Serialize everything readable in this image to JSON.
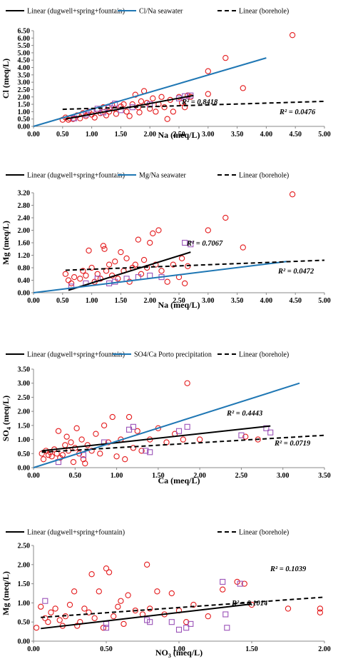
{
  "colors": {
    "points_main": "#e41a1c",
    "points_borehole": "#9a52b8",
    "seawater_line": "#1f77b4",
    "trend_line": "#000000"
  },
  "chart_data": [
    {
      "type": "scatter",
      "xlabel": "Na (meq/L)",
      "ylabel": "Cl (meq/L)",
      "xlim": [
        0,
        5
      ],
      "ylim": [
        0,
        6.5
      ],
      "xticks": [
        "0.00",
        "0.50",
        "1.00",
        "1.50",
        "2.00",
        "2.50",
        "3.00",
        "3.50",
        "4.00",
        "4.50",
        "5.00"
      ],
      "yticks": [
        "0.00",
        "0.50",
        "1.00",
        "1.50",
        "2.00",
        "2.50",
        "3.00",
        "3.50",
        "4.00",
        "4.50",
        "5.00",
        "5.50",
        "6.00",
        "6.50"
      ],
      "legend": [
        "Linear (dugwell+spring+fountain)",
        "Cl/Na seawater",
        "Linear (borehole)"
      ],
      "annotations": [
        "R² = 0.8418",
        "R² = 0.0476"
      ],
      "lines": [
        {
          "style": "solid-black",
          "x": [
            0.55,
            2.75
          ],
          "y": [
            0.5,
            2.1
          ]
        },
        {
          "style": "solid-blue",
          "x": [
            0,
            4.0
          ],
          "y": [
            0,
            4.65
          ]
        },
        {
          "style": "dashed-black",
          "x": [
            0.5,
            5.0
          ],
          "y": [
            1.16,
            1.7
          ]
        }
      ],
      "series_main": [
        [
          0.5,
          0.45
        ],
        [
          0.55,
          0.6
        ],
        [
          0.6,
          0.45
        ],
        [
          0.62,
          0.55
        ],
        [
          0.68,
          0.5
        ],
        [
          0.75,
          0.75
        ],
        [
          0.8,
          0.55
        ],
        [
          0.85,
          0.9
        ],
        [
          0.9,
          0.7
        ],
        [
          0.95,
          1.0
        ],
        [
          1.0,
          0.8
        ],
        [
          1.05,
          0.6
        ],
        [
          1.1,
          1.1
        ],
        [
          1.15,
          0.9
        ],
        [
          1.2,
          1.3
        ],
        [
          1.25,
          0.75
        ],
        [
          1.3,
          1.0
        ],
        [
          1.35,
          1.45
        ],
        [
          1.4,
          1.2
        ],
        [
          1.42,
          0.85
        ],
        [
          1.5,
          1.35
        ],
        [
          1.55,
          1.5
        ],
        [
          1.6,
          1.0
        ],
        [
          1.65,
          0.7
        ],
        [
          1.7,
          1.5
        ],
        [
          1.75,
          2.15
        ],
        [
          1.8,
          1.3
        ],
        [
          1.82,
          0.95
        ],
        [
          1.85,
          1.7
        ],
        [
          1.9,
          2.4
        ],
        [
          1.95,
          1.6
        ],
        [
          2.0,
          1.2
        ],
        [
          2.05,
          1.9
        ],
        [
          2.1,
          1.0
        ],
        [
          2.15,
          1.5
        ],
        [
          2.2,
          2.0
        ],
        [
          2.25,
          1.3
        ],
        [
          2.3,
          0.5
        ],
        [
          2.35,
          1.8
        ],
        [
          2.4,
          1.0
        ],
        [
          2.5,
          2.0
        ],
        [
          2.55,
          1.6
        ],
        [
          2.6,
          1.3
        ],
        [
          2.65,
          2.1
        ],
        [
          2.7,
          2.0
        ],
        [
          3.0,
          3.75
        ],
        [
          3.0,
          2.2
        ],
        [
          3.3,
          4.65
        ],
        [
          3.6,
          2.6
        ],
        [
          4.45,
          6.2
        ]
      ],
      "series_borehole": [
        [
          0.7,
          0.55
        ],
        [
          0.9,
          0.8
        ],
        [
          1.0,
          1.0
        ],
        [
          1.1,
          1.2
        ],
        [
          1.2,
          0.95
        ],
        [
          1.3,
          1.25
        ],
        [
          1.4,
          1.55
        ],
        [
          1.5,
          1.1
        ],
        [
          1.7,
          1.3
        ],
        [
          2.0,
          1.5
        ],
        [
          2.5,
          1.9
        ],
        [
          2.6,
          2.05
        ],
        [
          2.7,
          2.1
        ]
      ]
    },
    {
      "type": "scatter",
      "xlabel": "Na (meq/L)",
      "ylabel": "Mg (meq/L)",
      "xlim": [
        0,
        5
      ],
      "ylim": [
        0,
        3.2
      ],
      "xticks": [
        "0.00",
        "0.50",
        "1.00",
        "1.50",
        "2.00",
        "2.50",
        "3.00",
        "3.50",
        "4.00",
        "4.50",
        "5.00"
      ],
      "yticks": [
        "0.00",
        "0.40",
        "0.80",
        "1.20",
        "1.60",
        "2.00",
        "2.40",
        "2.80",
        "3.20"
      ],
      "legend": [
        "Linear (dugwell+spring+fountain)",
        "Mg/Na seawater",
        "Linear (borehole)"
      ],
      "annotations": [
        "R² = 0.7067",
        "R² = 0.0472"
      ],
      "lines": [
        {
          "style": "solid-black",
          "x": [
            0.6,
            2.7
          ],
          "y": [
            0.08,
            1.3
          ]
        },
        {
          "style": "solid-blue",
          "x": [
            0,
            4.35
          ],
          "y": [
            0,
            1.0
          ]
        },
        {
          "style": "dashed-black",
          "x": [
            0.55,
            5.0
          ],
          "y": [
            0.72,
            1.04
          ]
        }
      ],
      "series_main": [
        [
          0.55,
          0.6
        ],
        [
          0.6,
          0.4
        ],
        [
          0.65,
          0.3
        ],
        [
          0.7,
          0.5
        ],
        [
          0.8,
          0.45
        ],
        [
          0.85,
          0.7
        ],
        [
          0.9,
          0.55
        ],
        [
          0.95,
          1.35
        ],
        [
          1.0,
          0.8
        ],
        [
          1.05,
          0.35
        ],
        [
          1.1,
          0.6
        ],
        [
          1.15,
          0.45
        ],
        [
          1.2,
          1.5
        ],
        [
          1.22,
          1.4
        ],
        [
          1.25,
          0.7
        ],
        [
          1.3,
          0.9
        ],
        [
          1.35,
          0.55
        ],
        [
          1.4,
          1.0
        ],
        [
          1.45,
          0.45
        ],
        [
          1.5,
          1.3
        ],
        [
          1.55,
          0.7
        ],
        [
          1.6,
          1.1
        ],
        [
          1.65,
          0.35
        ],
        [
          1.7,
          0.8
        ],
        [
          1.75,
          0.9
        ],
        [
          1.8,
          1.7
        ],
        [
          1.85,
          0.6
        ],
        [
          1.9,
          1.05
        ],
        [
          1.95,
          0.8
        ],
        [
          2.0,
          1.6
        ],
        [
          2.05,
          1.9
        ],
        [
          2.1,
          0.9
        ],
        [
          2.15,
          2.0
        ],
        [
          2.2,
          0.7
        ],
        [
          2.3,
          0.35
        ],
        [
          2.4,
          0.9
        ],
        [
          2.5,
          0.5
        ],
        [
          2.55,
          1.1
        ],
        [
          2.6,
          0.3
        ],
        [
          2.65,
          0.85
        ],
        [
          3.0,
          2.0
        ],
        [
          3.3,
          2.4
        ],
        [
          3.6,
          1.45
        ],
        [
          4.45,
          3.15
        ]
      ],
      "series_borehole": [
        [
          0.65,
          0.2
        ],
        [
          0.9,
          0.3
        ],
        [
          1.1,
          0.45
        ],
        [
          1.3,
          0.3
        ],
        [
          1.4,
          0.35
        ],
        [
          1.6,
          0.45
        ],
        [
          1.8,
          0.5
        ],
        [
          2.0,
          0.55
        ],
        [
          2.2,
          0.5
        ],
        [
          2.6,
          1.6
        ],
        [
          2.7,
          1.55
        ]
      ]
    },
    {
      "type": "scatter",
      "xlabel": "Ca (meq/L)",
      "ylabel": "SO4 (meq/L)",
      "xlim": [
        0,
        3.5
      ],
      "ylim": [
        0,
        3.5
      ],
      "xticks": [
        "0.00",
        "0.50",
        "1.00",
        "1.50",
        "2.00",
        "2.50",
        "3.00",
        "3.50"
      ],
      "yticks": [
        "0.00",
        "0.50",
        "1.00",
        "1.50",
        "2.00",
        "2.50",
        "3.00",
        "3.50"
      ],
      "legend": [
        "Linear (dugwell+spring+fountain)",
        "SO4/Ca Porto precipitation",
        "Linear (borehole)"
      ],
      "annotations": [
        "R² = 0.4443",
        "R² = 0.0719"
      ],
      "lines": [
        {
          "style": "solid-black",
          "x": [
            0.1,
            2.85
          ],
          "y": [
            0.6,
            1.48
          ]
        },
        {
          "style": "solid-blue",
          "x": [
            0,
            3.2
          ],
          "y": [
            0,
            3.0
          ]
        },
        {
          "style": "dashed-black",
          "x": [
            0.1,
            3.5
          ],
          "y": [
            0.55,
            1.15
          ]
        }
      ],
      "series_main": [
        [
          0.1,
          0.5
        ],
        [
          0.12,
          0.3
        ],
        [
          0.15,
          0.6
        ],
        [
          0.18,
          0.45
        ],
        [
          0.2,
          0.55
        ],
        [
          0.22,
          0.4
        ],
        [
          0.25,
          0.65
        ],
        [
          0.28,
          0.5
        ],
        [
          0.3,
          1.3
        ],
        [
          0.32,
          0.35
        ],
        [
          0.35,
          0.45
        ],
        [
          0.38,
          0.8
        ],
        [
          0.4,
          1.1
        ],
        [
          0.42,
          0.6
        ],
        [
          0.45,
          0.9
        ],
        [
          0.48,
          0.2
        ],
        [
          0.5,
          0.7
        ],
        [
          0.52,
          1.4
        ],
        [
          0.55,
          0.5
        ],
        [
          0.58,
          1.0
        ],
        [
          0.6,
          0.3
        ],
        [
          0.62,
          0.15
        ],
        [
          0.65,
          0.8
        ],
        [
          0.7,
          0.6
        ],
        [
          0.75,
          1.2
        ],
        [
          0.8,
          0.5
        ],
        [
          0.85,
          1.5
        ],
        [
          0.9,
          0.9
        ],
        [
          0.95,
          1.8
        ],
        [
          1.0,
          0.4
        ],
        [
          1.05,
          1.0
        ],
        [
          1.1,
          0.3
        ],
        [
          1.15,
          1.8
        ],
        [
          1.2,
          0.7
        ],
        [
          1.25,
          1.3
        ],
        [
          1.3,
          0.6
        ],
        [
          1.4,
          1.0
        ],
        [
          1.5,
          1.4
        ],
        [
          1.6,
          0.9
        ],
        [
          1.7,
          1.2
        ],
        [
          1.8,
          1.0
        ],
        [
          1.85,
          3.0
        ],
        [
          2.0,
          1.0
        ],
        [
          2.55,
          1.1
        ],
        [
          2.7,
          1.0
        ]
      ],
      "series_borehole": [
        [
          0.3,
          0.2
        ],
        [
          0.6,
          0.45
        ],
        [
          0.85,
          0.9
        ],
        [
          1.15,
          1.35
        ],
        [
          1.2,
          1.45
        ],
        [
          1.35,
          0.6
        ],
        [
          1.4,
          0.55
        ],
        [
          1.75,
          1.3
        ],
        [
          1.85,
          1.45
        ],
        [
          2.5,
          1.15
        ],
        [
          2.8,
          1.4
        ],
        [
          2.85,
          1.25
        ]
      ]
    },
    {
      "type": "scatter",
      "xlabel": "NO3 (meq/L)",
      "ylabel": "Mg (meq/L)",
      "xlim": [
        0,
        2
      ],
      "ylim": [
        0,
        2.5
      ],
      "xticks": [
        "0.00",
        "0.50",
        "1.00",
        "1.50",
        "2.00"
      ],
      "yticks": [
        "0.00",
        "0.50",
        "1.00",
        "1.50",
        "2.00",
        "2.50"
      ],
      "legend": [
        "Linear (dugwell+spring+fountain)",
        "Linear (borehole)"
      ],
      "annotations": [
        "R² = 0.1039",
        "R² = 0.1014"
      ],
      "lines": [
        {
          "style": "solid-black",
          "x": [
            0.05,
            1.5
          ],
          "y": [
            0.33,
            0.97
          ]
        },
        {
          "style": "dashed-black",
          "x": [
            0.05,
            2.0
          ],
          "y": [
            0.62,
            1.15
          ]
        }
      ],
      "series_main": [
        [
          0.02,
          0.35
        ],
        [
          0.05,
          0.9
        ],
        [
          0.08,
          0.6
        ],
        [
          0.1,
          0.5
        ],
        [
          0.12,
          0.75
        ],
        [
          0.15,
          0.85
        ],
        [
          0.18,
          0.55
        ],
        [
          0.2,
          0.4
        ],
        [
          0.22,
          0.65
        ],
        [
          0.25,
          0.95
        ],
        [
          0.28,
          1.3
        ],
        [
          0.3,
          0.4
        ],
        [
          0.32,
          0.5
        ],
        [
          0.35,
          0.85
        ],
        [
          0.38,
          0.75
        ],
        [
          0.4,
          1.75
        ],
        [
          0.42,
          0.6
        ],
        [
          0.45,
          1.3
        ],
        [
          0.48,
          0.35
        ],
        [
          0.5,
          1.9
        ],
        [
          0.52,
          1.8
        ],
        [
          0.55,
          0.65
        ],
        [
          0.58,
          0.9
        ],
        [
          0.6,
          1.05
        ],
        [
          0.62,
          0.45
        ],
        [
          0.65,
          1.2
        ],
        [
          0.7,
          0.8
        ],
        [
          0.75,
          0.7
        ],
        [
          0.78,
          2.0
        ],
        [
          0.8,
          0.85
        ],
        [
          0.85,
          1.3
        ],
        [
          0.9,
          0.7
        ],
        [
          0.95,
          1.25
        ],
        [
          1.0,
          0.8
        ],
        [
          1.05,
          0.5
        ],
        [
          1.1,
          0.95
        ],
        [
          1.2,
          0.65
        ],
        [
          1.3,
          1.35
        ],
        [
          1.4,
          1.55
        ],
        [
          1.45,
          1.5
        ],
        [
          1.5,
          0.95
        ],
        [
          1.75,
          0.85
        ],
        [
          1.97,
          0.85
        ],
        [
          1.97,
          0.75
        ]
      ],
      "series_borehole": [
        [
          0.08,
          1.05
        ],
        [
          0.5,
          0.45
        ],
        [
          0.5,
          0.35
        ],
        [
          0.78,
          0.55
        ],
        [
          0.8,
          0.5
        ],
        [
          0.95,
          0.5
        ],
        [
          1.0,
          0.3
        ],
        [
          1.05,
          0.35
        ],
        [
          1.3,
          1.55
        ],
        [
          1.32,
          0.7
        ],
        [
          1.33,
          0.35
        ],
        [
          1.42,
          1.5
        ],
        [
          1.08,
          0.45
        ]
      ]
    }
  ]
}
